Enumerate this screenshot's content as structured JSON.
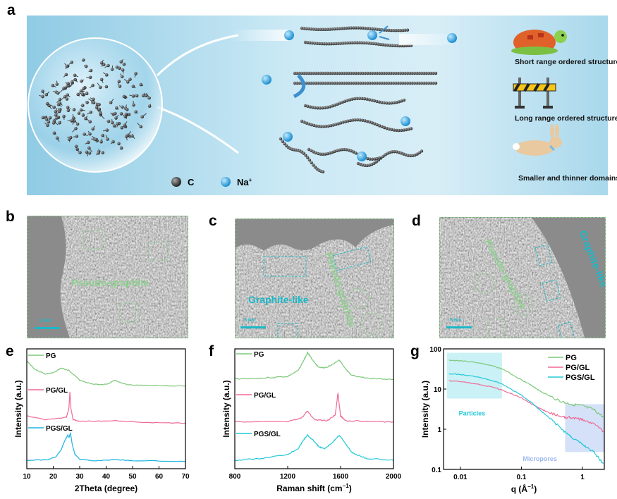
{
  "panel_labels": {
    "a": "a",
    "b": "b",
    "c": "c",
    "d": "d",
    "e": "e",
    "f": "f",
    "g": "g"
  },
  "panel_a": {
    "legend": {
      "carbon": "C",
      "sodium": "Na",
      "sodium_sup": "+"
    },
    "descriptions": [
      "Short range ordered structure",
      "Long range ordered structure",
      "Smaller and thinner domains"
    ],
    "icons": [
      "turtle-icon",
      "barrier-icon",
      "rabbit-icon"
    ]
  },
  "panel_b": {
    "label": "Pseudo-graphite",
    "scale": "5 nm"
  },
  "panel_c": {
    "label_green": "Pseudo-graphite",
    "label_cyan": "Graphite-like",
    "scale": "5 nm"
  },
  "panel_d": {
    "label_green": "Pseudo-graphite",
    "label_cyan": "Graphite-like",
    "scale": "5 nm"
  },
  "colors": {
    "PG": "#7cc87a",
    "PG/GL": "#f06a96",
    "PGS/GL": "#1ab3e0",
    "PGS/GL_g": "#22c8d8",
    "green_label": "#8fd08f",
    "cyan_label": "#1bb8c8"
  },
  "chart_data": [
    {
      "id": "e",
      "type": "line",
      "xlabel": "2Theta (degree)",
      "ylabel": "Intensity (a.u.)",
      "xlim": [
        10,
        70
      ],
      "xticks": [
        "10",
        "20",
        "30",
        "40",
        "50",
        "60",
        "70"
      ],
      "ylim": [
        0,
        1
      ],
      "series": [
        {
          "name": "PG",
          "x": [
            10,
            13,
            17,
            20,
            23,
            26,
            30,
            34,
            38,
            41,
            43,
            45,
            48,
            55,
            70
          ],
          "y": [
            0.9,
            0.83,
            0.79,
            0.8,
            0.84,
            0.82,
            0.74,
            0.71,
            0.7,
            0.71,
            0.74,
            0.72,
            0.7,
            0.695,
            0.69
          ]
        },
        {
          "name": "PG/GL",
          "x": [
            10,
            17,
            22,
            25,
            25.9,
            26.3,
            26.7,
            27.5,
            30,
            44,
            55,
            70
          ],
          "y": [
            0.44,
            0.41,
            0.42,
            0.43,
            0.5,
            0.64,
            0.5,
            0.41,
            0.395,
            0.4,
            0.385,
            0.38
          ]
        },
        {
          "name": "PGS/GL",
          "x": [
            10,
            18,
            21,
            23,
            24.5,
            25.5,
            26,
            26.5,
            27.2,
            28.2,
            30,
            35,
            43,
            50,
            70
          ],
          "y": [
            0.07,
            0.075,
            0.1,
            0.16,
            0.24,
            0.28,
            0.26,
            0.3,
            0.2,
            0.12,
            0.08,
            0.065,
            0.076,
            0.068,
            0.06
          ]
        }
      ]
    },
    {
      "id": "f",
      "type": "line",
      "xlabel": "Raman shift (cm",
      "xlabel_sup": "−1",
      "xlabel_end": ")",
      "ylabel": "Intensity (a.u.)",
      "xlim": [
        800,
        2000
      ],
      "xticks": [
        "800",
        "1200",
        "1600",
        "2000"
      ],
      "ylim": [
        0,
        1
      ],
      "series": [
        {
          "name": "PG",
          "x": [
            800,
            1000,
            1200,
            1280,
            1320,
            1350,
            1380,
            1430,
            1480,
            1540,
            1590,
            1630,
            1680,
            1800,
            2000
          ],
          "y": [
            0.75,
            0.755,
            0.77,
            0.82,
            0.9,
            0.97,
            0.92,
            0.85,
            0.84,
            0.87,
            0.91,
            0.84,
            0.78,
            0.755,
            0.745
          ]
        },
        {
          "name": "PG/GL",
          "x": [
            800,
            1200,
            1300,
            1350,
            1400,
            1500,
            1560,
            1580,
            1600,
            1640,
            1800,
            2000
          ],
          "y": [
            0.39,
            0.395,
            0.42,
            0.48,
            0.41,
            0.4,
            0.45,
            0.63,
            0.44,
            0.4,
            0.395,
            0.39
          ]
        },
        {
          "name": "PGS/GL",
          "x": [
            800,
            1000,
            1200,
            1280,
            1320,
            1350,
            1390,
            1440,
            1480,
            1540,
            1590,
            1630,
            1690,
            1800,
            2000
          ],
          "y": [
            0.07,
            0.085,
            0.12,
            0.17,
            0.24,
            0.28,
            0.24,
            0.18,
            0.165,
            0.22,
            0.28,
            0.22,
            0.13,
            0.085,
            0.07
          ]
        }
      ]
    },
    {
      "id": "g",
      "type": "line",
      "xscale": "log",
      "yscale": "log",
      "xlabel": "q (Å",
      "xlabel_sup": "−1",
      "xlabel_end": ")",
      "ylabel": "Intensity (a.u.)",
      "xlim": [
        0.0053,
        2.28
      ],
      "xticks": [
        {
          "v": 0.01,
          "t": "0.01"
        },
        {
          "v": 0.1,
          "t": "0.1"
        },
        {
          "v": 1,
          "t": "1"
        }
      ],
      "ylim": [
        0.1,
        100
      ],
      "yticks": [
        {
          "v": 0.1,
          "t": "0.1"
        },
        {
          "v": 1,
          "t": "1"
        },
        {
          "v": 10,
          "t": "10"
        },
        {
          "v": 100,
          "t": "100"
        }
      ],
      "legend": "top-right",
      "regions": [
        {
          "name": "Particles",
          "q": [
            0.006,
            0.048
          ],
          "I": [
            5.8,
            80
          ],
          "color": "#bdeef2",
          "text_color": "#22c8d8"
        },
        {
          "name": "Micropores",
          "q": [
            0.52,
            2.28
          ],
          "I": [
            0.27,
            4.2
          ],
          "color": "#c9d9f7",
          "text_color": "#9db8f0"
        }
      ],
      "series": [
        {
          "name": "PG",
          "x": [
            0.0065,
            0.01,
            0.02,
            0.035,
            0.05,
            0.1,
            0.15,
            0.2,
            0.3,
            0.5,
            0.7,
            1,
            1.5,
            2.2
          ],
          "y": [
            52,
            51,
            45,
            37,
            31,
            17,
            12,
            9,
            6.5,
            4.6,
            4.1,
            3.8,
            3.1,
            2.0
          ]
        },
        {
          "name": "PG/GL",
          "x": [
            0.0065,
            0.01,
            0.02,
            0.035,
            0.05,
            0.1,
            0.15,
            0.2,
            0.3,
            0.5,
            0.7,
            1,
            1.5,
            2.2
          ],
          "y": [
            16,
            15.5,
            13,
            11,
            9.2,
            6,
            4.2,
            3.3,
            2.5,
            2.0,
            1.9,
            1.75,
            1.4,
            0.9
          ]
        },
        {
          "name": "PGS/GL",
          "x": [
            0.0065,
            0.01,
            0.02,
            0.035,
            0.05,
            0.1,
            0.15,
            0.2,
            0.3,
            0.5,
            0.7,
            1,
            1.5,
            2.2
          ],
          "y": [
            24,
            23,
            20,
            16,
            13,
            7,
            4.5,
            3,
            1.8,
            0.9,
            0.6,
            0.42,
            0.28,
            0.14
          ]
        }
      ]
    }
  ]
}
